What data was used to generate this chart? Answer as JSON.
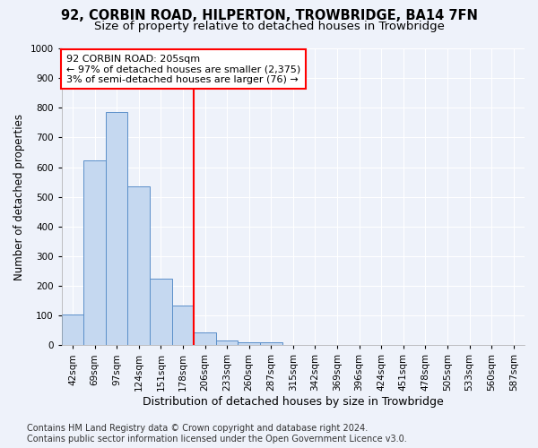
{
  "title": "92, CORBIN ROAD, HILPERTON, TROWBRIDGE, BA14 7FN",
  "subtitle": "Size of property relative to detached houses in Trowbridge",
  "xlabel": "Distribution of detached houses by size in Trowbridge",
  "ylabel": "Number of detached properties",
  "bar_labels": [
    "42sqm",
    "69sqm",
    "97sqm",
    "124sqm",
    "151sqm",
    "178sqm",
    "206sqm",
    "233sqm",
    "260sqm",
    "287sqm",
    "315sqm",
    "342sqm",
    "369sqm",
    "396sqm",
    "424sqm",
    "451sqm",
    "478sqm",
    "505sqm",
    "533sqm",
    "560sqm",
    "587sqm"
  ],
  "bar_values": [
    103,
    622,
    785,
    535,
    224,
    133,
    42,
    17,
    10,
    10,
    0,
    0,
    0,
    0,
    0,
    0,
    0,
    0,
    0,
    0,
    0
  ],
  "bar_color": "#c5d8f0",
  "bar_edge_color": "#5b8fc9",
  "vline_x_index": 6,
  "vline_color": "red",
  "annotation_line1": "92 CORBIN ROAD: 205sqm",
  "annotation_line2": "← 97% of detached houses are smaller (2,375)",
  "annotation_line3": "3% of semi-detached houses are larger (76) →",
  "annotation_bbox_color": "white",
  "annotation_bbox_edge": "red",
  "ylim": [
    0,
    1000
  ],
  "yticks": [
    0,
    100,
    200,
    300,
    400,
    500,
    600,
    700,
    800,
    900,
    1000
  ],
  "footer_line1": "Contains HM Land Registry data © Crown copyright and database right 2024.",
  "footer_line2": "Contains public sector information licensed under the Open Government Licence v3.0.",
  "background_color": "#eef2fa",
  "grid_color": "#ffffff",
  "title_fontsize": 10.5,
  "subtitle_fontsize": 9.5,
  "xlabel_fontsize": 9,
  "ylabel_fontsize": 8.5,
  "tick_fontsize": 7.5,
  "annotation_fontsize": 8,
  "footer_fontsize": 7
}
